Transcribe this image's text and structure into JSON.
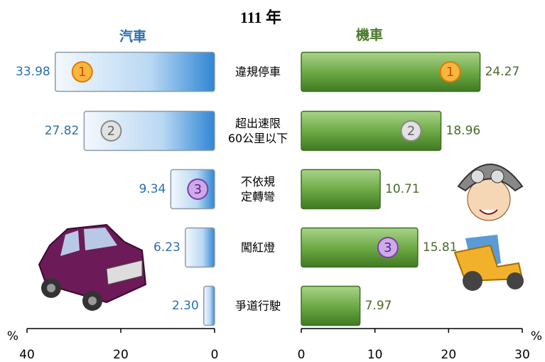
{
  "chart_data": {
    "type": "butterfly",
    "title": "111 年",
    "x_label": "%",
    "categories": [
      "違規停車",
      "超出速限\n60公里以下",
      "不依規\n定轉彎",
      "闖紅燈",
      "爭道行駛"
    ],
    "series": [
      {
        "name": "汽車",
        "color": "#3a8fd6",
        "label_color": "#2a6fb0",
        "values": [
          33.98,
          27.82,
          9.34,
          6.23,
          2.3
        ],
        "value_labels": [
          "33.98",
          "27.82",
          "9.34",
          "6.23",
          "2.30"
        ],
        "ranks": [
          1,
          2,
          3,
          null,
          null
        ],
        "xlim": [
          0,
          40
        ],
        "xticks": [
          40,
          20,
          0
        ],
        "reversed": true
      },
      {
        "name": "機車",
        "color": "#5a9a35",
        "label_color": "#4a6b2a",
        "values": [
          24.27,
          18.96,
          10.71,
          15.81,
          7.97
        ],
        "ranks": [
          1,
          2,
          null,
          3,
          null
        ],
        "xlim": [
          0,
          30
        ],
        "xticks": [
          0,
          10,
          20,
          30
        ],
        "reversed": false
      }
    ]
  }
}
